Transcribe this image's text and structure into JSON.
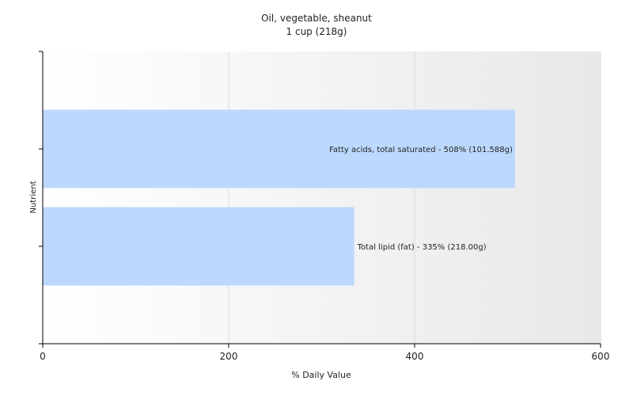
{
  "chart_data": {
    "type": "bar",
    "orientation": "horizontal",
    "title": "Oil, vegetable, sheanut",
    "subtitle": "1 cup (218g)",
    "xlabel": "% Daily Value",
    "ylabel": "Nutrient",
    "xlim": [
      0,
      600
    ],
    "xticks": [
      "0",
      "200",
      "400",
      "600"
    ],
    "grid": true,
    "categories": [
      "Fatty acids, total saturated",
      "Total lipid (fat)"
    ],
    "values": [
      508,
      335
    ],
    "data_labels": [
      "Fatty acids, total saturated - 508% (101.588g)",
      "Total lipid (fat) - 335% (218.00g)"
    ],
    "bar_color": "#bcd9fd",
    "background_gradient": [
      "#ffffff",
      "#e8e8e8"
    ]
  }
}
